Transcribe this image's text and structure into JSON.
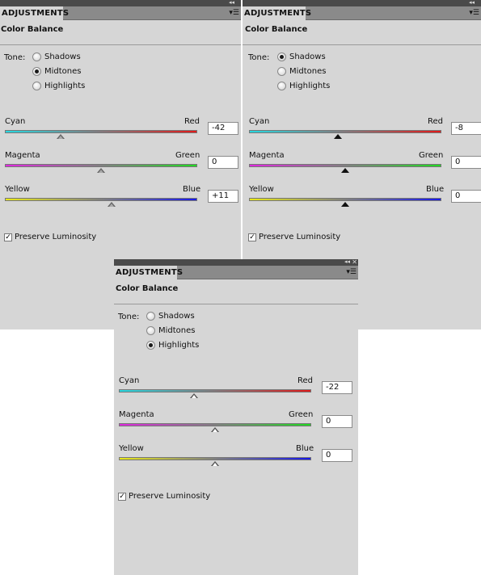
{
  "panels": [
    {
      "tab_label": "ADJUSTMENTS",
      "title": "Color Balance",
      "tone_label": "Tone:",
      "tones": [
        "Shadows",
        "Midtones",
        "Highlights"
      ],
      "selected_tone": "Midtones",
      "sliders": [
        {
          "left": "Cyan",
          "right": "Red",
          "value": "-42"
        },
        {
          "left": "Magenta",
          "right": "Green",
          "value": "0"
        },
        {
          "left": "Yellow",
          "right": "Blue",
          "value": "+11"
        }
      ],
      "preserve_label": "Preserve Luminosity",
      "preserve_checked": true
    },
    {
      "tab_label": "ADJUSTMENTS",
      "title": "Color Balance",
      "tone_label": "Tone:",
      "tones": [
        "Shadows",
        "Midtones",
        "Highlights"
      ],
      "selected_tone": "Shadows",
      "sliders": [
        {
          "left": "Cyan",
          "right": "Red",
          "value": "-8"
        },
        {
          "left": "Magenta",
          "right": "Green",
          "value": "0"
        },
        {
          "left": "Yellow",
          "right": "Blue",
          "value": "0"
        }
      ],
      "preserve_label": "Preserve Luminosity",
      "preserve_checked": true
    },
    {
      "tab_label": "ADJUSTMENTS",
      "title": "Color Balance",
      "tone_label": "Tone:",
      "tones": [
        "Shadows",
        "Midtones",
        "Highlights"
      ],
      "selected_tone": "Highlights",
      "sliders": [
        {
          "left": "Cyan",
          "right": "Red",
          "value": "-22"
        },
        {
          "left": "Magenta",
          "right": "Green",
          "value": "0"
        },
        {
          "left": "Yellow",
          "right": "Blue",
          "value": "0"
        }
      ],
      "preserve_label": "Preserve Luminosity",
      "preserve_checked": true
    }
  ],
  "icons": {
    "collapse": "double-chevron-icon",
    "close": "close-icon",
    "menu": "panel-menu-icon"
  },
  "colors": {
    "panel_bg": "#d6d6d6",
    "titlebar": "#4a4a4a",
    "tab_strip": "#8a8a8a"
  }
}
